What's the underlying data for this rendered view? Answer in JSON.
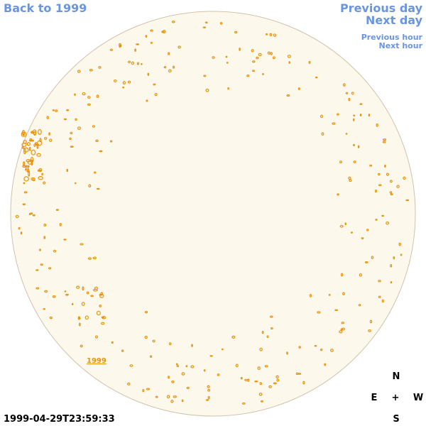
{
  "links": {
    "back": "Back to 1999",
    "previous_day": "Previous day",
    "next_day": "Next day",
    "previous_hour": "Previous hour",
    "next_hour": "Next hour"
  },
  "disk_label": "1999",
  "timestamp": "1999-04-29T23:59:33",
  "compass": {
    "north": "N",
    "east": "E",
    "center": "+",
    "west": "W",
    "south": "S"
  }
}
